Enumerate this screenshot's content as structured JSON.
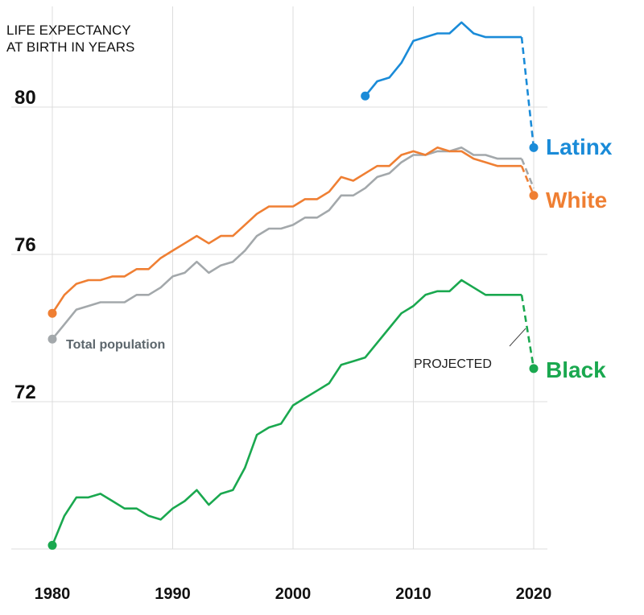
{
  "chart_data": {
    "type": "line",
    "title": "",
    "ylabel_lines": [
      "LIFE EXPECTANCY",
      "AT BIRTH IN YEARS"
    ],
    "xlabel": "",
    "xlim": [
      1980,
      2020
    ],
    "ylim": [
      68,
      83
    ],
    "x_ticks": [
      1980,
      1990,
      2000,
      2010,
      2020
    ],
    "y_ticks": [
      72,
      76,
      80
    ],
    "colors": {
      "Latinx": "#1a8bd8",
      "White": "#ef7f33",
      "Black": "#1aa84f",
      "Total population": "#a3a8ab",
      "total_label": "#5c666c",
      "annotation": "#222222"
    },
    "series": [
      {
        "name": "Total population",
        "label": "Total population",
        "years": [
          1980,
          1981,
          1982,
          1983,
          1984,
          1985,
          1986,
          1987,
          1988,
          1989,
          1990,
          1991,
          1992,
          1993,
          1994,
          1995,
          1996,
          1997,
          1998,
          1999,
          2000,
          2001,
          2002,
          2003,
          2004,
          2005,
          2006,
          2007,
          2008,
          2009,
          2010,
          2011,
          2012,
          2013,
          2014,
          2015,
          2016,
          2017,
          2018,
          2019,
          2020
        ],
        "values": [
          73.7,
          74.1,
          74.5,
          74.6,
          74.7,
          74.7,
          74.7,
          74.9,
          74.9,
          75.1,
          75.4,
          75.5,
          75.8,
          75.5,
          75.7,
          75.8,
          76.1,
          76.5,
          76.7,
          76.7,
          76.8,
          77.0,
          77.0,
          77.2,
          77.6,
          77.6,
          77.8,
          78.1,
          78.2,
          78.5,
          78.7,
          78.7,
          78.8,
          78.8,
          78.9,
          78.7,
          78.7,
          78.6,
          78.6,
          78.6,
          77.8
        ],
        "projected_from_index": 39
      },
      {
        "name": "White",
        "label": "White",
        "years": [
          1980,
          1981,
          1982,
          1983,
          1984,
          1985,
          1986,
          1987,
          1988,
          1989,
          1990,
          1991,
          1992,
          1993,
          1994,
          1995,
          1996,
          1997,
          1998,
          1999,
          2000,
          2001,
          2002,
          2003,
          2004,
          2005,
          2006,
          2007,
          2008,
          2009,
          2010,
          2011,
          2012,
          2013,
          2014,
          2015,
          2016,
          2017,
          2018,
          2019,
          2020
        ],
        "values": [
          74.4,
          74.9,
          75.2,
          75.3,
          75.3,
          75.4,
          75.4,
          75.6,
          75.6,
          75.9,
          76.1,
          76.3,
          76.5,
          76.3,
          76.5,
          76.5,
          76.8,
          77.1,
          77.3,
          77.3,
          77.3,
          77.5,
          77.5,
          77.7,
          78.1,
          78.0,
          78.2,
          78.4,
          78.4,
          78.7,
          78.8,
          78.7,
          78.9,
          78.8,
          78.8,
          78.6,
          78.5,
          78.4,
          78.4,
          78.4,
          77.6
        ],
        "projected_from_index": 39
      },
      {
        "name": "Latinx",
        "label": "Latinx",
        "years": [
          2006,
          2007,
          2008,
          2009,
          2010,
          2011,
          2012,
          2013,
          2014,
          2015,
          2016,
          2017,
          2018,
          2019,
          2020
        ],
        "values": [
          80.3,
          80.7,
          80.8,
          81.2,
          81.8,
          81.9,
          82.0,
          82.0,
          82.3,
          82.0,
          81.9,
          81.9,
          81.9,
          81.9,
          78.9
        ],
        "projected_from_index": 13
      },
      {
        "name": "Black",
        "label": "Black",
        "years": [
          1980,
          1981,
          1982,
          1983,
          1984,
          1985,
          1986,
          1987,
          1988,
          1989,
          1990,
          1991,
          1992,
          1993,
          1994,
          1995,
          1996,
          1997,
          1998,
          1999,
          2000,
          2001,
          2002,
          2003,
          2004,
          2005,
          2006,
          2007,
          2008,
          2009,
          2010,
          2011,
          2012,
          2013,
          2014,
          2015,
          2016,
          2017,
          2018,
          2019,
          2020
        ],
        "values": [
          68.1,
          68.9,
          69.4,
          69.4,
          69.5,
          69.3,
          69.1,
          69.1,
          68.9,
          68.8,
          69.1,
          69.3,
          69.6,
          69.2,
          69.5,
          69.6,
          70.2,
          71.1,
          71.3,
          71.4,
          71.9,
          72.1,
          72.3,
          72.5,
          73.0,
          73.1,
          73.2,
          73.6,
          74.0,
          74.4,
          74.6,
          74.9,
          75.0,
          75.0,
          75.3,
          75.1,
          74.9,
          74.9,
          74.9,
          74.9,
          72.9
        ],
        "projected_from_index": 39
      }
    ],
    "annotations": [
      {
        "text": "PROJECTED"
      }
    ]
  }
}
